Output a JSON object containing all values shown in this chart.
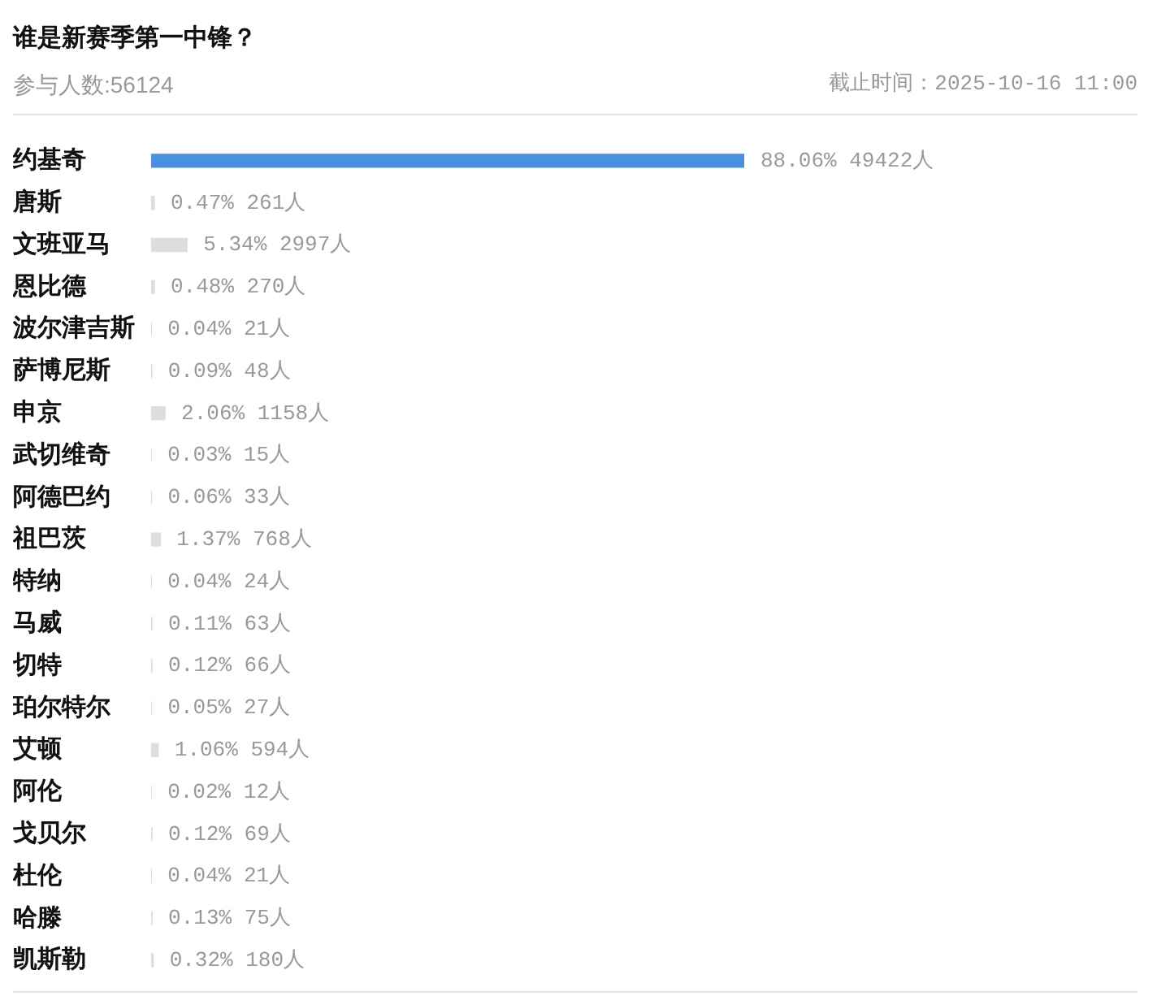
{
  "chart_data": {
    "type": "bar",
    "orientation": "horizontal",
    "title": "谁是新赛季第一中锋？",
    "subtitle": "参与人数:56124",
    "annotations": [
      "截止时间：2025-10-16 11:00"
    ],
    "categories": [
      "约基奇",
      "唐斯",
      "文班亚马",
      "恩比德",
      "波尔津吉斯",
      "萨博尼斯",
      "申京",
      "武切维奇",
      "阿德巴约",
      "祖巴茨",
      "特纳",
      "马威",
      "切特",
      "珀尔特尔",
      "艾顿",
      "阿伦",
      "戈贝尔",
      "杜伦",
      "哈滕",
      "凯斯勒"
    ],
    "values": [
      88.06,
      0.47,
      5.34,
      0.48,
      0.04,
      0.09,
      2.06,
      0.03,
      0.06,
      1.37,
      0.04,
      0.11,
      0.12,
      0.05,
      1.06,
      0.02,
      0.12,
      0.04,
      0.13,
      0.32
    ],
    "value_labels": [
      "88.06% 49422人",
      "0.47% 261人",
      "5.34% 2997人",
      "0.48% 270人",
      "0.04% 21人",
      "0.09% 48人",
      "2.06% 1158人",
      "0.03% 15人",
      "0.06% 33人",
      "1.37% 768人",
      "0.04% 24人",
      "0.11% 63人",
      "0.12% 66人",
      "0.05% 27人",
      "1.06% 594人",
      "0.02% 12人",
      "0.12% 69人",
      "0.04% 21人",
      "0.13% 75人",
      "0.32% 180人"
    ],
    "colors": [
      "#4a90e2",
      "#dddddd",
      "#dddddd",
      "#dddddd",
      "#dddddd",
      "#dddddd",
      "#dddddd",
      "#dddddd",
      "#dddddd",
      "#dddddd",
      "#dddddd",
      "#dddddd",
      "#dddddd",
      "#dddddd",
      "#dddddd",
      "#dddddd",
      "#dddddd",
      "#dddddd",
      "#dddddd",
      "#dddddd"
    ],
    "tick_labels": "y"
  }
}
